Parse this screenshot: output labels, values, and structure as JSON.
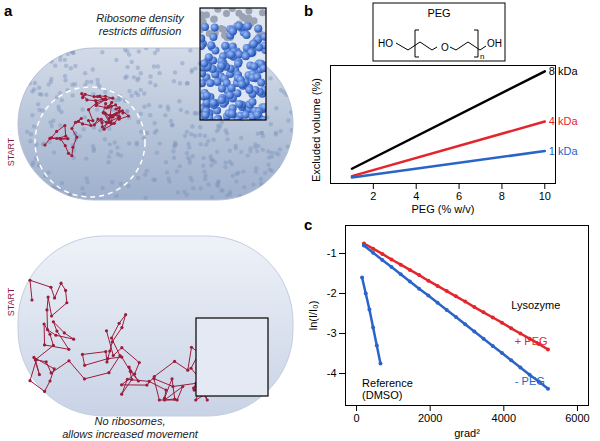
{
  "panel_labels": [
    "a",
    "b",
    "c"
  ],
  "illustration": {
    "top_cell": {
      "caption": [
        "Ribosome density",
        "restricts diffusion"
      ],
      "start": "START"
    },
    "bottom_cell": {
      "caption": [
        "No ribosomes,",
        "allows increased movement"
      ],
      "start": "START"
    }
  },
  "peg_structure": {
    "title": "PEG",
    "left": "HO",
    "middle": "O",
    "right": "OH",
    "repeat": "n"
  },
  "chart_data": [
    {
      "type": "line",
      "xlabel": "PEG (% w/v)",
      "ylabel": "Excluded volume (%)",
      "xlim": [
        0,
        10.5
      ],
      "xticks": [
        2,
        4,
        6,
        8,
        10
      ],
      "ylim": [
        0,
        80
      ],
      "tick_labels": "x",
      "x": [
        1,
        10
      ],
      "series": [
        {
          "name": "8 kDa",
          "color": "#000000",
          "values": [
            10,
            76
          ]
        },
        {
          "name": "4 kDa",
          "color": "#e3262d",
          "values": [
            5,
            42
          ]
        },
        {
          "name": "1 kDa",
          "color": "#2a64c8",
          "values": [
            4,
            22
          ]
        }
      ]
    },
    {
      "type": "scatter",
      "xlabel": "grad²",
      "ylabel": "ln(I/I₀)",
      "xlim": [
        -300,
        6300
      ],
      "xticks": [
        0,
        2000,
        4000,
        6000
      ],
      "ylim": [
        -4.8,
        -0.3
      ],
      "yticks": [
        -4,
        -3,
        -2,
        -1
      ],
      "series": [
        {
          "color": "#e3262d",
          "marker": "circle",
          "line_style": "solid",
          "x": [
            200,
            450,
            700,
            950,
            1200,
            1450,
            1700,
            1950,
            2200,
            2450,
            2700,
            2950,
            3200,
            3450,
            3700,
            3950,
            4200,
            4450,
            4700,
            4950,
            5200
          ],
          "values": [
            -0.75,
            -0.88,
            -1.01,
            -1.15,
            -1.28,
            -1.41,
            -1.54,
            -1.68,
            -1.81,
            -1.94,
            -2.07,
            -2.2,
            -2.34,
            -2.47,
            -2.6,
            -2.73,
            -2.87,
            -3.0,
            -3.13,
            -3.26,
            -3.4
          ]
        },
        {
          "color": "#2a64c8",
          "marker": "circle",
          "line_style": "solid",
          "x": [
            200,
            450,
            700,
            950,
            1200,
            1450,
            1700,
            1950,
            2200,
            2450,
            2700,
            2950,
            3200,
            3450,
            3700,
            3950,
            4200,
            4450,
            4700,
            4950,
            5200
          ],
          "values": [
            -0.8,
            -0.98,
            -1.16,
            -1.34,
            -1.52,
            -1.7,
            -1.88,
            -2.05,
            -2.23,
            -2.41,
            -2.59,
            -2.77,
            -2.95,
            -3.13,
            -3.31,
            -3.49,
            -3.67,
            -3.85,
            -4.03,
            -4.2,
            -4.38
          ]
        },
        {
          "color": "#2a64c8",
          "marker": "circle",
          "line_style": "solid",
          "x": [
            150,
            250,
            350,
            450,
            550,
            650
          ],
          "values": [
            -1.6,
            -2.0,
            -2.4,
            -2.85,
            -3.3,
            -3.75
          ]
        }
      ],
      "annotations": [
        {
          "text": "Lysozyme",
          "x": 4200,
          "y": -2.3,
          "color": "#000000"
        },
        {
          "text": "+ PEG",
          "x": 4300,
          "y": -3.2,
          "color": "#e3262d"
        },
        {
          "text": "- PEG",
          "x": 4300,
          "y": -4.2,
          "color": "#2a64c8"
        },
        {
          "text": "Reference",
          "x": 150,
          "y": -4.25,
          "color": "#000000"
        },
        {
          "text": "(DMSO)",
          "x": 150,
          "y": -4.55,
          "color": "#000000"
        }
      ]
    }
  ]
}
